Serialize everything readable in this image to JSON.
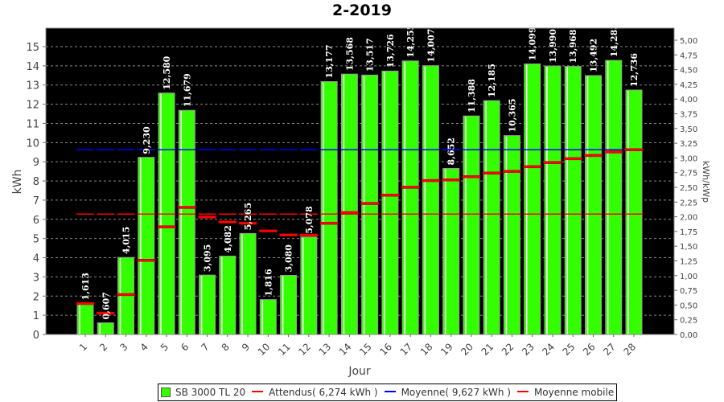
{
  "chart_data": {
    "type": "bar",
    "title": "2-2019",
    "xlabel": "Jour",
    "ylabel": "kWh",
    "y2label": "kWh/kWp",
    "ylim": [
      0,
      16
    ],
    "y2lim": [
      0,
      5.2
    ],
    "yticks": [
      "0",
      "1",
      "2",
      "3",
      "4",
      "5",
      "6",
      "7",
      "8",
      "9",
      "10",
      "11",
      "12",
      "13",
      "14",
      "15"
    ],
    "y2ticks": [
      "0,00",
      "0,25",
      "0,50",
      "0,75",
      "1,00",
      "1,25",
      "1,50",
      "1,75",
      "2,00",
      "2,25",
      "2,50",
      "2,75",
      "3,00",
      "3,25",
      "3,50",
      "3,75",
      "4,00",
      "4,25",
      "4,50",
      "4,75",
      "5,00"
    ],
    "categories": [
      "1",
      "2",
      "3",
      "4",
      "5",
      "6",
      "7",
      "8",
      "9",
      "10",
      "11",
      "12",
      "13",
      "14",
      "15",
      "16",
      "17",
      "18",
      "19",
      "20",
      "21",
      "22",
      "23",
      "24",
      "25",
      "26",
      "27",
      "28"
    ],
    "series": [
      {
        "name": "SB 3000 TL 20",
        "type": "bar",
        "color": "#33ff00",
        "values": [
          1.613,
          0.607,
          4.015,
          9.23,
          12.58,
          11.679,
          3.095,
          4.082,
          5.265,
          1.816,
          3.08,
          5.078,
          13.177,
          13.568,
          13.517,
          13.726,
          14.255,
          14.007,
          8.652,
          11.388,
          12.185,
          10.365,
          14.099,
          13.99,
          13.968,
          13.492,
          14.283,
          12.736
        ],
        "labels": [
          "1,613",
          "0,607",
          "4,015",
          "9,230",
          "12,580",
          "11,679",
          "3,095",
          "4,082",
          "5,265",
          "1,816",
          "3,080",
          "5,078",
          "13,177",
          "13,568",
          "13,517",
          "13,726",
          "14,255",
          "14,007",
          "8,652",
          "11,388",
          "12,185",
          "10,365",
          "14,099",
          "13,990",
          "13,968",
          "13,492",
          "14,283",
          "12,736"
        ]
      },
      {
        "name": "Attendus( 6,274 kWh )",
        "type": "line",
        "color": "#ff0000",
        "value": 6.274
      },
      {
        "name": "Moyenne( 9,627 kWh )",
        "type": "line",
        "color": "#0000ff",
        "value": 9.627
      },
      {
        "name": "Moyenne mobile",
        "type": "step",
        "color": "#ff0000",
        "values": [
          1.613,
          1.11,
          2.078,
          3.866,
          5.609,
          6.621,
          6.117,
          5.863,
          5.796,
          5.398,
          5.187,
          5.178,
          5.794,
          6.349,
          6.827,
          7.258,
          7.67,
          8.022,
          8.055,
          8.222,
          8.41,
          8.499,
          8.743,
          8.961,
          9.161,
          9.328,
          9.512,
          9.627
        ]
      }
    ]
  }
}
